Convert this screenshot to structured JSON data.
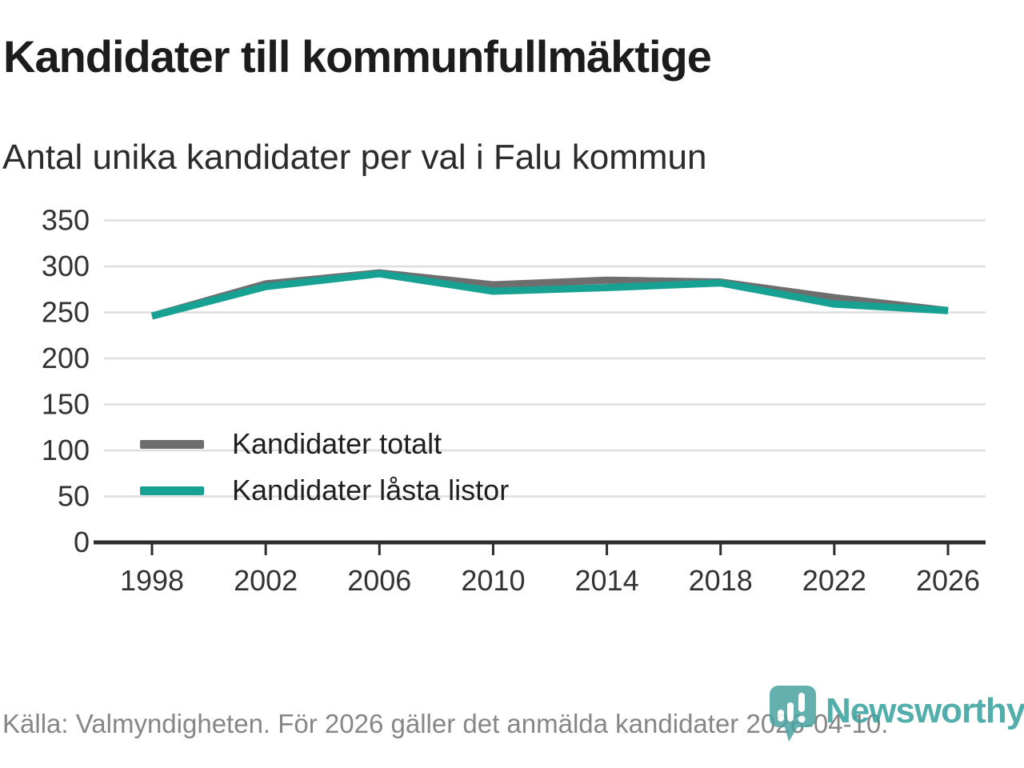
{
  "header": {
    "title": "Kandidater till kommunfullmäktige",
    "subtitle": "Antal unika kandidater per val i Falu kommun"
  },
  "chart_data": {
    "type": "line",
    "title": "Kandidater till kommunfullmäktige",
    "subtitle": "Antal unika kandidater per val i Falu kommun",
    "categories": [
      "1998",
      "2002",
      "2006",
      "2010",
      "2014",
      "2018",
      "2022",
      "2026"
    ],
    "series": [
      {
        "name": "Kandidater totalt",
        "color": "#6e6e6e",
        "values": [
          246,
          281,
          293,
          280,
          285,
          283,
          266,
          252
        ]
      },
      {
        "name": "Kandidater låsta listor",
        "color": "#16a193",
        "values": [
          246,
          278,
          292,
          273,
          277,
          282,
          259,
          252
        ]
      }
    ],
    "xlabel": "",
    "ylabel": "",
    "ylim": [
      0,
      350
    ],
    "y_ticks": [
      0,
      50,
      100,
      150,
      200,
      250,
      300,
      350
    ],
    "grid": "horizontal",
    "legend_position": "inside-left"
  },
  "footer": {
    "source": "Källa: Valmyndigheten. För 2026 gäller det anmälda kandidater 2026-04-10.",
    "logo_text": "Newsworthy"
  },
  "colors": {
    "accent_teal": "#16a193",
    "series_gray": "#6e6e6e",
    "grid": "#dedede",
    "axis": "#2d2d2d",
    "tick_text": "#333333",
    "text_dark": "#1c1c1c",
    "text_muted": "#868686",
    "logo_teal": "#4aa3a0"
  }
}
